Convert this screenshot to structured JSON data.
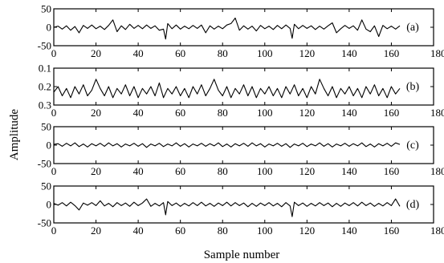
{
  "chart_data": {
    "type": "line",
    "xlabel": "Sample number",
    "ylabel": "Amplitude",
    "xlim": [
      0,
      180
    ],
    "xticks": [
      0,
      20,
      40,
      60,
      80,
      100,
      120,
      140,
      160,
      180
    ],
    "panels": [
      {
        "label": "(a)",
        "ylim": [
          -50,
          50
        ],
        "yticks": [
          50,
          0,
          -50
        ],
        "yticklabels": [
          "50",
          "0",
          "-50"
        ],
        "y_inverted": false,
        "x": [
          0,
          2,
          4,
          6,
          8,
          10,
          12,
          14,
          16,
          18,
          20,
          22,
          24,
          26,
          28,
          30,
          32,
          34,
          36,
          38,
          40,
          42,
          44,
          46,
          48,
          50,
          52,
          53,
          54,
          56,
          58,
          60,
          62,
          64,
          66,
          68,
          70,
          72,
          74,
          76,
          78,
          80,
          82,
          84,
          86,
          88,
          90,
          92,
          94,
          96,
          98,
          100,
          102,
          104,
          106,
          108,
          110,
          112,
          113,
          114,
          116,
          118,
          120,
          122,
          124,
          126,
          128,
          130,
          132,
          134,
          136,
          138,
          140,
          142,
          144,
          146,
          148,
          150,
          152,
          154,
          156,
          158,
          160,
          162,
          164
        ],
        "values": [
          0,
          3,
          -5,
          4,
          -8,
          2,
          -15,
          5,
          -3,
          6,
          -4,
          3,
          -6,
          5,
          20,
          -12,
          4,
          -6,
          8,
          -3,
          5,
          -4,
          6,
          -3,
          4,
          -8,
          -5,
          -32,
          10,
          -4,
          6,
          -5,
          3,
          -4,
          5,
          -3,
          6,
          -15,
          4,
          -5,
          3,
          -4,
          6,
          10,
          25,
          -8,
          4,
          -5,
          3,
          -10,
          5,
          -4,
          3,
          -6,
          5,
          -4,
          6,
          -3,
          -30,
          8,
          -4,
          5,
          -3,
          4,
          -6,
          3,
          -5,
          4,
          12,
          -15,
          -4,
          5,
          -3,
          4,
          -8,
          20,
          -5,
          -12,
          4,
          -25,
          5,
          -4,
          3,
          -5,
          4
        ]
      },
      {
        "label": "(b)",
        "ylim": [
          0.1,
          0.3
        ],
        "yticks": [
          0.1,
          0.2,
          0.3
        ],
        "yticklabels": [
          "0.1",
          "0.2",
          "0.3"
        ],
        "y_inverted": true,
        "x": [
          0,
          2,
          4,
          6,
          8,
          10,
          12,
          14,
          16,
          18,
          20,
          22,
          24,
          26,
          28,
          30,
          32,
          34,
          36,
          38,
          40,
          42,
          44,
          46,
          48,
          50,
          52,
          54,
          56,
          58,
          60,
          62,
          64,
          66,
          68,
          70,
          72,
          74,
          76,
          78,
          80,
          82,
          84,
          86,
          88,
          90,
          92,
          94,
          96,
          98,
          100,
          102,
          104,
          106,
          108,
          110,
          112,
          114,
          116,
          118,
          120,
          122,
          124,
          126,
          128,
          130,
          132,
          134,
          136,
          138,
          140,
          142,
          144,
          146,
          148,
          150,
          152,
          154,
          156,
          158,
          160,
          162,
          164
        ],
        "values": [
          0.23,
          0.2,
          0.25,
          0.21,
          0.26,
          0.2,
          0.24,
          0.19,
          0.25,
          0.22,
          0.16,
          0.21,
          0.25,
          0.2,
          0.26,
          0.21,
          0.24,
          0.19,
          0.25,
          0.2,
          0.26,
          0.21,
          0.24,
          0.2,
          0.25,
          0.18,
          0.26,
          0.21,
          0.24,
          0.2,
          0.25,
          0.21,
          0.26,
          0.2,
          0.24,
          0.19,
          0.25,
          0.21,
          0.16,
          0.22,
          0.25,
          0.2,
          0.26,
          0.21,
          0.24,
          0.19,
          0.25,
          0.2,
          0.26,
          0.21,
          0.24,
          0.2,
          0.25,
          0.21,
          0.26,
          0.2,
          0.24,
          0.19,
          0.25,
          0.21,
          0.26,
          0.2,
          0.24,
          0.16,
          0.21,
          0.25,
          0.2,
          0.26,
          0.21,
          0.24,
          0.2,
          0.25,
          0.21,
          0.26,
          0.2,
          0.24,
          0.19,
          0.25,
          0.21,
          0.26,
          0.2,
          0.24,
          0.21
        ]
      },
      {
        "label": "(c)",
        "ylim": [
          -50,
          50
        ],
        "yticks": [
          50,
          0,
          -50
        ],
        "yticklabels": [
          "50",
          "0",
          "-50"
        ],
        "y_inverted": false,
        "x": [
          0,
          2,
          4,
          6,
          8,
          10,
          12,
          14,
          16,
          18,
          20,
          22,
          24,
          26,
          28,
          30,
          32,
          34,
          36,
          38,
          40,
          42,
          44,
          46,
          48,
          50,
          52,
          54,
          56,
          58,
          60,
          62,
          64,
          66,
          68,
          70,
          72,
          74,
          76,
          78,
          80,
          82,
          84,
          86,
          88,
          90,
          92,
          94,
          96,
          98,
          100,
          102,
          104,
          106,
          108,
          110,
          112,
          114,
          116,
          118,
          120,
          122,
          124,
          126,
          128,
          130,
          132,
          134,
          136,
          138,
          140,
          142,
          144,
          146,
          148,
          150,
          152,
          154,
          156,
          158,
          160,
          162,
          164
        ],
        "values": [
          2,
          4,
          -3,
          5,
          -2,
          6,
          -4,
          3,
          -5,
          4,
          -2,
          5,
          -3,
          6,
          -2,
          4,
          -5,
          3,
          -2,
          5,
          -3,
          4,
          -6,
          3,
          -2,
          5,
          -4,
          3,
          -2,
          6,
          -3,
          4,
          -5,
          3,
          -2,
          5,
          -3,
          4,
          -2,
          6,
          -4,
          3,
          -5,
          4,
          -2,
          5,
          -3,
          6,
          -2,
          4,
          -5,
          3,
          -2,
          5,
          -3,
          4,
          -6,
          3,
          -2,
          5,
          -4,
          3,
          -2,
          6,
          -3,
          4,
          -5,
          3,
          -2,
          5,
          -3,
          4,
          -2,
          6,
          -4,
          3,
          -5,
          4,
          -2,
          5,
          -3,
          6,
          2
        ]
      },
      {
        "label": "(d)",
        "ylim": [
          -50,
          50
        ],
        "yticks": [
          50,
          0,
          -50
        ],
        "yticklabels": [
          "50",
          "0",
          "-50"
        ],
        "y_inverted": false,
        "x": [
          0,
          2,
          4,
          6,
          8,
          10,
          12,
          14,
          16,
          18,
          20,
          22,
          24,
          26,
          28,
          30,
          32,
          34,
          36,
          38,
          40,
          42,
          44,
          46,
          48,
          50,
          52,
          53,
          54,
          56,
          58,
          60,
          62,
          64,
          66,
          68,
          70,
          72,
          74,
          76,
          78,
          80,
          82,
          84,
          86,
          88,
          90,
          92,
          94,
          96,
          98,
          100,
          102,
          104,
          106,
          108,
          110,
          112,
          113,
          114,
          116,
          118,
          120,
          122,
          124,
          126,
          128,
          130,
          132,
          134,
          136,
          138,
          140,
          142,
          144,
          146,
          148,
          150,
          152,
          154,
          156,
          158,
          160,
          162,
          164
        ],
        "values": [
          3,
          -2,
          5,
          -4,
          6,
          -3,
          -15,
          4,
          -2,
          5,
          -3,
          10,
          -4,
          3,
          -6,
          5,
          -3,
          4,
          -5,
          6,
          -3,
          4,
          15,
          -5,
          3,
          -4,
          5,
          -28,
          8,
          -3,
          4,
          -5,
          3,
          -4,
          5,
          -3,
          6,
          -4,
          3,
          -5,
          4,
          -3,
          6,
          -4,
          5,
          -3,
          4,
          -6,
          3,
          -5,
          4,
          -3,
          5,
          -4,
          3,
          -6,
          5,
          -4,
          -33,
          6,
          -3,
          4,
          -5,
          3,
          -4,
          5,
          -3,
          4,
          -6,
          3,
          -5,
          4,
          -3,
          5,
          -4,
          6,
          -3,
          4,
          -5,
          3,
          -4,
          5,
          -3,
          15,
          -5
        ]
      }
    ]
  }
}
